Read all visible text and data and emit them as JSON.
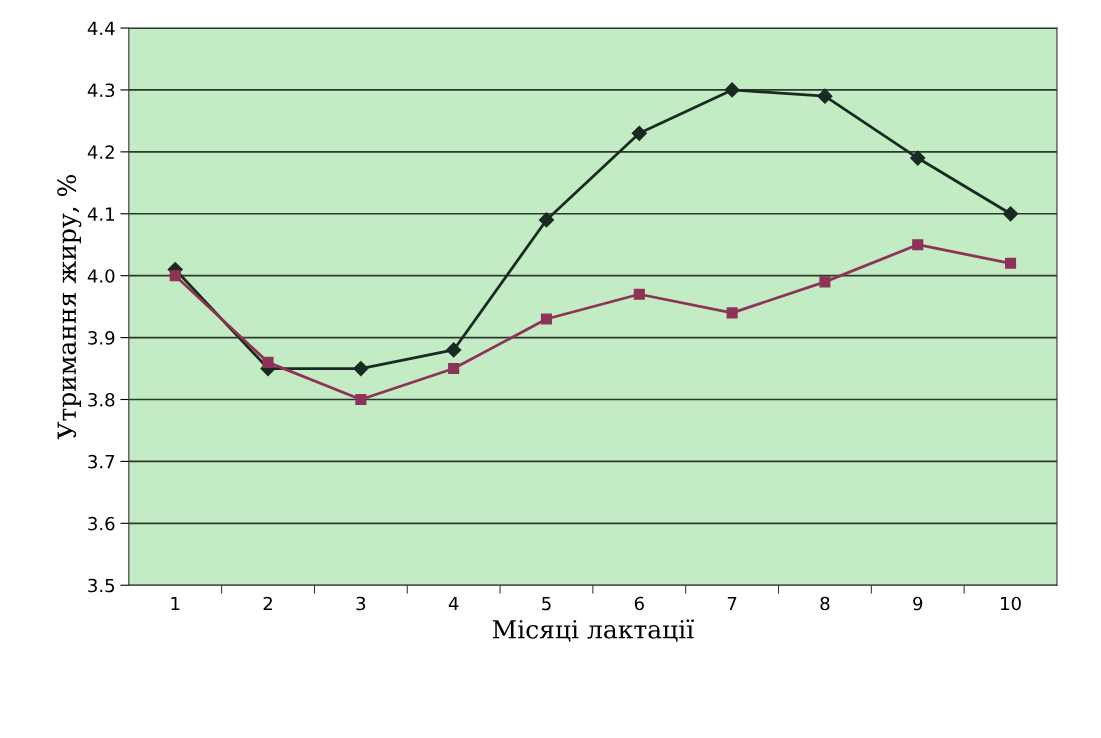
{
  "chart_data": {
    "type": "line",
    "xlabel": "Місяці лактації",
    "ylabel": "Утримання жиру, %",
    "categories": [
      "1",
      "2",
      "3",
      "4",
      "5",
      "6",
      "7",
      "8",
      "9",
      "10"
    ],
    "series": [
      {
        "color": "#1a2a22",
        "marker": "diamond",
        "values": [
          4.01,
          3.85,
          3.85,
          3.88,
          4.09,
          4.23,
          4.3,
          4.29,
          4.19,
          4.1
        ]
      },
      {
        "color": "#8e3358",
        "marker": "square",
        "values": [
          4.0,
          3.86,
          3.8,
          3.85,
          3.93,
          3.97,
          3.94,
          3.99,
          4.05,
          4.02
        ]
      }
    ],
    "ylim": [
      3.5,
      4.4
    ],
    "yticks": [
      {
        "value": 3.5,
        "label": "3.5"
      },
      {
        "value": 3.6,
        "label": "3.6"
      },
      {
        "value": 3.7,
        "label": "3.7"
      },
      {
        "value": 3.8,
        "label": "3.8"
      },
      {
        "value": 3.9,
        "label": "3.9"
      },
      {
        "value": 4.0,
        "label": "4.0"
      },
      {
        "value": 4.1,
        "label": "4.1"
      },
      {
        "value": 4.2,
        "label": "4.2"
      },
      {
        "value": 4.3,
        "label": "4.3"
      },
      {
        "value": 4.4,
        "label": "4.4"
      }
    ],
    "grid": "y"
  }
}
